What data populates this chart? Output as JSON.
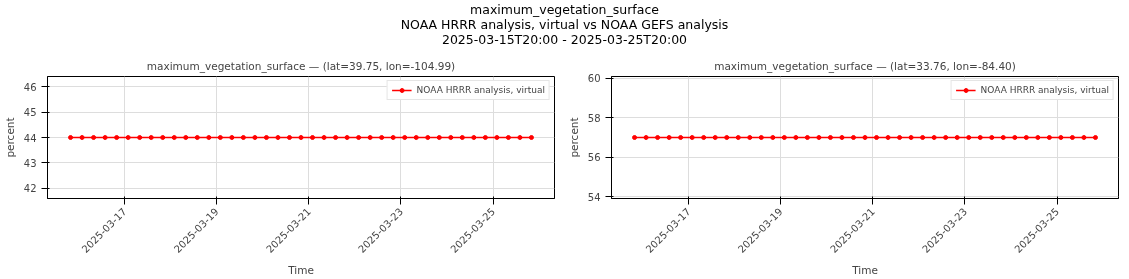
{
  "chart_data": [
    {
      "type": "other",
      "title": "maximum_vegetation_surface",
      "subtitle": "NOAA HRRR analysis, virtual vs NOAA GEFS analysis",
      "annotations": [
        "2025-03-15T20:00 - 2025-03-25T20:00"
      ]
    },
    {
      "type": "line",
      "title": "maximum_vegetation_surface — (lat=39.75, lon=-104.99)",
      "xlabel": "Time",
      "ylabel": "percent",
      "xlim": [
        "2025-03-15T08:00",
        "2025-03-26T08:00"
      ],
      "xticks": [
        "2025-03-17",
        "2025-03-19",
        "2025-03-21",
        "2025-03-23",
        "2025-03-25"
      ],
      "ylim": [
        41.6,
        46.4
      ],
      "yticks": [
        42,
        43,
        44,
        45,
        46
      ],
      "grid": true,
      "legend": "top right",
      "marker": "circle",
      "line_style": "solid",
      "series": [
        {
          "name": "NOAA HRRR analysis, virtual",
          "color": "#ff0000",
          "x": [
            "2025-03-15T20:00",
            "2025-03-16T02:00",
            "2025-03-16T08:00",
            "2025-03-16T14:00",
            "2025-03-16T20:00",
            "2025-03-17T02:00",
            "2025-03-17T08:00",
            "2025-03-17T14:00",
            "2025-03-17T20:00",
            "2025-03-18T02:00",
            "2025-03-18T08:00",
            "2025-03-18T14:00",
            "2025-03-18T20:00",
            "2025-03-19T02:00",
            "2025-03-19T08:00",
            "2025-03-19T14:00",
            "2025-03-19T20:00",
            "2025-03-20T02:00",
            "2025-03-20T08:00",
            "2025-03-20T14:00",
            "2025-03-20T20:00",
            "2025-03-21T02:00",
            "2025-03-21T08:00",
            "2025-03-21T14:00",
            "2025-03-21T20:00",
            "2025-03-22T02:00",
            "2025-03-22T08:00",
            "2025-03-22T14:00",
            "2025-03-22T20:00",
            "2025-03-23T02:00",
            "2025-03-23T08:00",
            "2025-03-23T14:00",
            "2025-03-23T20:00",
            "2025-03-24T02:00",
            "2025-03-24T08:00",
            "2025-03-24T14:00",
            "2025-03-24T20:00",
            "2025-03-25T02:00",
            "2025-03-25T08:00",
            "2025-03-25T14:00",
            "2025-03-25T20:00"
          ],
          "values": [
            44,
            44,
            44,
            44,
            44,
            44,
            44,
            44,
            44,
            44,
            44,
            44,
            44,
            44,
            44,
            44,
            44,
            44,
            44,
            44,
            44,
            44,
            44,
            44,
            44,
            44,
            44,
            44,
            44,
            44,
            44,
            44,
            44,
            44,
            44,
            44,
            44,
            44,
            44,
            44,
            44
          ]
        }
      ]
    },
    {
      "type": "line",
      "title": "maximum_vegetation_surface — (lat=33.76, lon=-84.40)",
      "xlabel": "Time",
      "ylabel": "percent",
      "xlim": [
        "2025-03-15T08:00",
        "2025-03-26T08:00"
      ],
      "xticks": [
        "2025-03-17",
        "2025-03-19",
        "2025-03-21",
        "2025-03-23",
        "2025-03-25"
      ],
      "ylim": [
        53.9,
        60.1
      ],
      "yticks": [
        54,
        56,
        58,
        60
      ],
      "grid": true,
      "legend": "top right",
      "marker": "circle",
      "line_style": "solid",
      "series": [
        {
          "name": "NOAA HRRR analysis, virtual",
          "color": "#ff0000",
          "x": [
            "2025-03-15T20:00",
            "2025-03-16T02:00",
            "2025-03-16T08:00",
            "2025-03-16T14:00",
            "2025-03-16T20:00",
            "2025-03-17T02:00",
            "2025-03-17T08:00",
            "2025-03-17T14:00",
            "2025-03-17T20:00",
            "2025-03-18T02:00",
            "2025-03-18T08:00",
            "2025-03-18T14:00",
            "2025-03-18T20:00",
            "2025-03-19T02:00",
            "2025-03-19T08:00",
            "2025-03-19T14:00",
            "2025-03-19T20:00",
            "2025-03-20T02:00",
            "2025-03-20T08:00",
            "2025-03-20T14:00",
            "2025-03-20T20:00",
            "2025-03-21T02:00",
            "2025-03-21T08:00",
            "2025-03-21T14:00",
            "2025-03-21T20:00",
            "2025-03-22T02:00",
            "2025-03-22T08:00",
            "2025-03-22T14:00",
            "2025-03-22T20:00",
            "2025-03-23T02:00",
            "2025-03-23T08:00",
            "2025-03-23T14:00",
            "2025-03-23T20:00",
            "2025-03-24T02:00",
            "2025-03-24T08:00",
            "2025-03-24T14:00",
            "2025-03-24T20:00",
            "2025-03-25T02:00",
            "2025-03-25T08:00",
            "2025-03-25T14:00",
            "2025-03-25T20:00"
          ],
          "values": [
            57,
            57,
            57,
            57,
            57,
            57,
            57,
            57,
            57,
            57,
            57,
            57,
            57,
            57,
            57,
            57,
            57,
            57,
            57,
            57,
            57,
            57,
            57,
            57,
            57,
            57,
            57,
            57,
            57,
            57,
            57,
            57,
            57,
            57,
            57,
            57,
            57,
            57,
            57,
            57,
            57
          ]
        }
      ]
    }
  ]
}
